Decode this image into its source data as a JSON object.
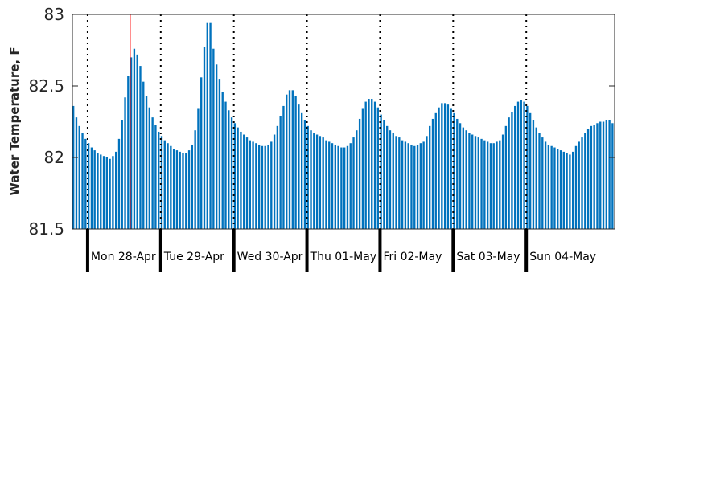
{
  "chart_data": {
    "type": "bar",
    "ylabel": "Water Temperature, F",
    "ylim": [
      81.5,
      83
    ],
    "yticks": [
      81.5,
      82,
      82.5,
      83
    ],
    "ytick_labels": [
      "81.5",
      "82",
      "82.5",
      "83"
    ],
    "bar_color": "#0072bd",
    "marker_color": "#ff0000",
    "grid": false,
    "x_start": "Sun 27-Apr 19:00",
    "x_interval_hours": 1,
    "day_labels": [
      "Mon 28-Apr",
      "Tue 29-Apr",
      "Wed 30-Apr",
      "Thu 01-May",
      "Fri 02-May",
      "Sat 03-May",
      "Sun 04-May"
    ],
    "current_time_marker": "Mon 28-Apr 14:00",
    "values": [
      82.36,
      82.28,
      82.22,
      82.17,
      82.13,
      82.1,
      82.07,
      82.05,
      82.03,
      82.02,
      82.01,
      82.0,
      81.99,
      82.01,
      82.04,
      82.13,
      82.26,
      82.42,
      82.57,
      82.7,
      82.76,
      82.72,
      82.64,
      82.53,
      82.43,
      82.35,
      82.28,
      82.23,
      82.18,
      82.15,
      82.12,
      82.1,
      82.08,
      82.06,
      82.05,
      82.04,
      82.03,
      82.03,
      82.05,
      82.09,
      82.19,
      82.34,
      82.56,
      82.77,
      82.94,
      82.94,
      82.76,
      82.65,
      82.55,
      82.46,
      82.39,
      82.33,
      82.28,
      82.24,
      82.21,
      82.18,
      82.16,
      82.14,
      82.12,
      82.11,
      82.1,
      82.09,
      82.08,
      82.08,
      82.09,
      82.11,
      82.16,
      82.22,
      82.29,
      82.36,
      82.44,
      82.47,
      82.47,
      82.43,
      82.37,
      82.31,
      82.26,
      82.22,
      82.19,
      82.17,
      82.16,
      82.15,
      82.14,
      82.12,
      82.11,
      82.1,
      82.09,
      82.08,
      82.07,
      82.07,
      82.08,
      82.1,
      82.14,
      82.19,
      82.27,
      82.34,
      82.39,
      82.41,
      82.41,
      82.39,
      82.35,
      82.3,
      82.26,
      82.22,
      82.19,
      82.17,
      82.15,
      82.14,
      82.12,
      82.11,
      82.1,
      82.09,
      82.08,
      82.09,
      82.1,
      82.11,
      82.15,
      82.22,
      82.27,
      82.31,
      82.35,
      82.38,
      82.38,
      82.37,
      82.34,
      82.31,
      82.27,
      82.24,
      82.21,
      82.19,
      82.17,
      82.16,
      82.15,
      82.14,
      82.13,
      82.12,
      82.11,
      82.1,
      82.1,
      82.11,
      82.12,
      82.16,
      82.22,
      82.28,
      82.32,
      82.36,
      82.39,
      82.4,
      82.39,
      82.36,
      82.31,
      82.26,
      82.21,
      82.17,
      82.14,
      82.11,
      82.09,
      82.08,
      82.07,
      82.06,
      82.05,
      82.04,
      82.03,
      82.02,
      82.04,
      82.08,
      82.11,
      82.14,
      82.17,
      82.2,
      82.22,
      82.23,
      82.24,
      82.25,
      82.25,
      82.26,
      82.26,
      82.24
    ]
  }
}
